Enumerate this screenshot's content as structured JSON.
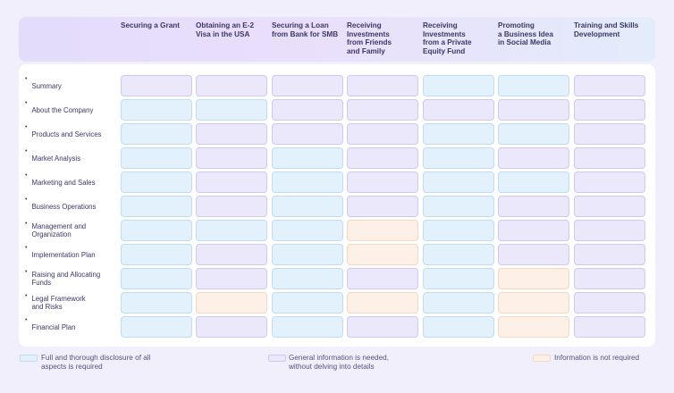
{
  "columns": [
    "Securing a Grant",
    "Obtaining an E-2 Visa in the USA",
    "Securing a Loan from Bank for SMB",
    "Receiving Investments from Friends and Family",
    "Receiving Investments from a Private Equity Fund",
    "Promoting a Business Idea in Social Media",
    "Training and Skills Development"
  ],
  "column_lines": [
    [
      "Securing a Grant"
    ],
    [
      "Obtaining an E-2",
      "Visa in the USA"
    ],
    [
      "Securing a Loan",
      "from Bank for SMB"
    ],
    [
      "Receiving",
      "Investments",
      "from Friends",
      "and Family"
    ],
    [
      "Receiving",
      "Investments",
      "from a Private",
      "Equity Fund"
    ],
    [
      "Promoting",
      "a Business Idea",
      "in Social Media"
    ],
    [
      "Training and Skills",
      "Development"
    ]
  ],
  "rows": [
    {
      "label": [
        "Summary"
      ],
      "cells": [
        "gen",
        "gen",
        "gen",
        "gen",
        "full",
        "full",
        "gen"
      ]
    },
    {
      "label": [
        "About the Company"
      ],
      "cells": [
        "full",
        "full",
        "gen",
        "gen",
        "gen",
        "gen",
        "gen"
      ]
    },
    {
      "label": [
        "Products and Services"
      ],
      "cells": [
        "full",
        "gen",
        "gen",
        "gen",
        "full",
        "full",
        "gen"
      ]
    },
    {
      "label": [
        "Market Analysis"
      ],
      "cells": [
        "full",
        "gen",
        "full",
        "gen",
        "full",
        "gen",
        "gen"
      ]
    },
    {
      "label": [
        "Marketing and Sales"
      ],
      "cells": [
        "full",
        "gen",
        "full",
        "gen",
        "full",
        "full",
        "gen"
      ]
    },
    {
      "label": [
        "Business Operations"
      ],
      "cells": [
        "full",
        "gen",
        "full",
        "gen",
        "full",
        "gen",
        "gen"
      ]
    },
    {
      "label": [
        "Management and",
        "Organization"
      ],
      "cells": [
        "full",
        "full",
        "full",
        "none",
        "full",
        "gen",
        "gen"
      ]
    },
    {
      "label": [
        "Implementation Plan"
      ],
      "cells": [
        "full",
        "gen",
        "full",
        "none",
        "full",
        "gen",
        "gen"
      ]
    },
    {
      "label": [
        "Raising and Allocating",
        "Funds"
      ],
      "cells": [
        "full",
        "gen",
        "full",
        "gen",
        "full",
        "none",
        "gen"
      ]
    },
    {
      "label": [
        "Legal Framework",
        "and Risks"
      ],
      "cells": [
        "full",
        "none",
        "full",
        "none",
        "full",
        "none",
        "gen"
      ]
    },
    {
      "label": [
        "Financial Plan"
      ],
      "cells": [
        "full",
        "gen",
        "full",
        "gen",
        "full",
        "none",
        "gen"
      ]
    }
  ],
  "legend": [
    {
      "key": "full",
      "lines": [
        "Full and thorough disclosure of all",
        "aspects is required"
      ]
    },
    {
      "key": "gen",
      "lines": [
        "General information is needed,",
        "without delving into details"
      ]
    },
    {
      "key": "none",
      "lines": [
        "Information is not required"
      ]
    }
  ],
  "colors": {
    "full": "#e3f1fc",
    "general": "#ebe8fb",
    "not_required": "#fdf0e6",
    "background": "#f1effc"
  }
}
